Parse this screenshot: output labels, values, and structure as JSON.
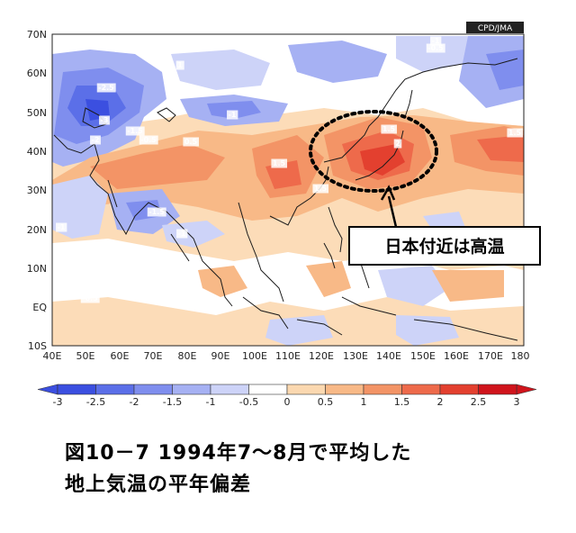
{
  "map": {
    "source_badge": "CPD/JMA",
    "lat_labels": [
      "70N",
      "60N",
      "50N",
      "40N",
      "30N",
      "20N",
      "10N",
      "EQ",
      "10S"
    ],
    "lon_labels": [
      "40E",
      "50E",
      "60E",
      "70E",
      "80E",
      "90E",
      "100E",
      "110E",
      "120E",
      "130E",
      "140E",
      "150E",
      "160E",
      "170E",
      "180"
    ],
    "callout": "日本付近は高温",
    "contour_values": [
      "-2.5",
      "-3",
      "-2",
      "-1.5",
      "-1",
      "-0.5",
      "-1",
      "0.5",
      "1",
      "1.5",
      "2",
      "1.5",
      "1.5",
      "-1",
      "-1.5",
      "1.5",
      "-1",
      "-0.5",
      "-0.5",
      "-1"
    ]
  },
  "colorbar": {
    "ticks": [
      "-3",
      "-2.5",
      "-2",
      "-1.5",
      "-1",
      "-0.5",
      "0",
      "0.5",
      "1",
      "1.5",
      "2",
      "2.5",
      "3"
    ],
    "colors": [
      "#3b4fe0",
      "#5b6fe8",
      "#7f8eee",
      "#a6b1f3",
      "#cdd3f8",
      "#ffffff",
      "#fbd8b0",
      "#f8b987",
      "#f39466",
      "#ee6a4b",
      "#e3402f",
      "#d0141c"
    ]
  },
  "caption": {
    "line1": "図10－7 1994年7～8月で平均した",
    "line2": "地上気温の平年偏差"
  }
}
